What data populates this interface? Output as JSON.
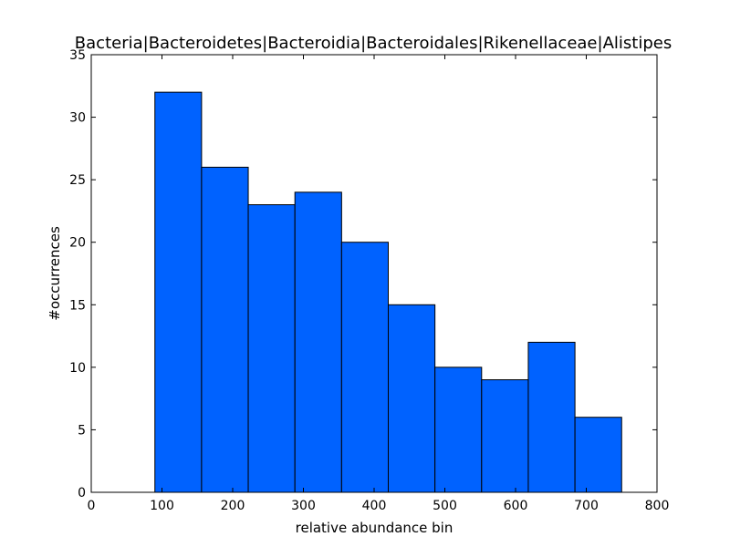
{
  "chart_data": {
    "type": "bar",
    "title": "Bacteria|Bacteroidetes|Bacteroidia|Bacteroidales|Rikenellaceae|Alistipes",
    "xlabel": "relative abundance bin",
    "ylabel": "#occurrences",
    "xlim": [
      0,
      800
    ],
    "ylim": [
      0,
      35
    ],
    "xticks": [
      0,
      100,
      200,
      300,
      400,
      500,
      600,
      700,
      800
    ],
    "yticks": [
      0,
      5,
      10,
      15,
      20,
      25,
      30,
      35
    ],
    "bin_edges": [
      90,
      156,
      222,
      288,
      354,
      420,
      486,
      552,
      618,
      684,
      750
    ],
    "values": [
      32,
      26,
      23,
      24,
      20,
      15,
      10,
      9,
      12,
      6
    ],
    "bar_color": "#0062ff",
    "edge_color": "#000000",
    "grid": false
  }
}
